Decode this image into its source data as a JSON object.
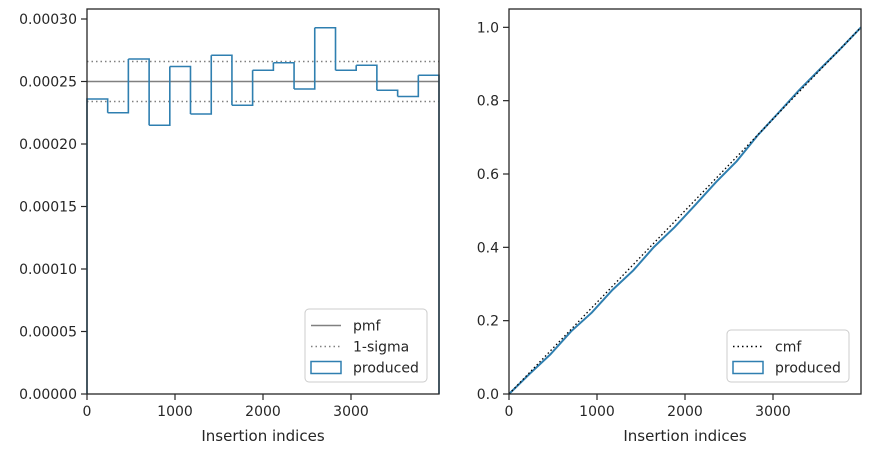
{
  "colors": {
    "produced": "#2f7fb0",
    "pmf": "#808080",
    "sigma": "#808080",
    "cmf": "#000000",
    "spine": "#262626"
  },
  "chart_data": [
    {
      "type": "histogram",
      "xlabel": "Insertion indices",
      "ylabel": "",
      "xlim": [
        0,
        4000
      ],
      "ylim": [
        0,
        0.000308
      ],
      "xticks": [
        0,
        1000,
        2000,
        3000
      ],
      "xtick_labels": [
        "0",
        "1000",
        "2000",
        "3000"
      ],
      "yticks": [
        0,
        5e-05,
        0.0001,
        0.00015,
        0.0002,
        0.00025,
        0.0003
      ],
      "ytick_labels": [
        "0.00000",
        "0.00005",
        "0.00010",
        "0.00015",
        "0.00020",
        "0.00025",
        "0.00030"
      ],
      "pmf": 0.00025,
      "sigma_band": [
        0.000234,
        0.000266
      ],
      "bin_edges": [
        0,
        235,
        470,
        706,
        941,
        1176,
        1412,
        1647,
        1882,
        2118,
        2353,
        2588,
        2824,
        3059,
        3294,
        3530,
        3765,
        4000
      ],
      "produced": [
        0.000236,
        0.000225,
        0.000268,
        0.000215,
        0.000262,
        0.000224,
        0.000271,
        0.000231,
        0.000259,
        0.000265,
        0.000244,
        0.000293,
        0.000259,
        0.000263,
        0.000243,
        0.000238,
        0.000255
      ],
      "legend": {
        "placement": "lower-right",
        "entries": [
          {
            "key": "pmf",
            "label": "pmf"
          },
          {
            "key": "sigma",
            "label": "1-sigma"
          },
          {
            "key": "produced",
            "label": "produced"
          }
        ]
      }
    },
    {
      "type": "line",
      "xlabel": "Insertion indices",
      "ylabel": "",
      "xlim": [
        0,
        4000
      ],
      "ylim": [
        0,
        1.05
      ],
      "xticks": [
        0,
        1000,
        2000,
        3000
      ],
      "xtick_labels": [
        "0",
        "1000",
        "2000",
        "3000"
      ],
      "yticks": [
        0,
        0.2,
        0.4,
        0.6,
        0.8,
        1.0
      ],
      "ytick_labels": [
        "0.0",
        "0.2",
        "0.4",
        "0.6",
        "0.8",
        "1.0"
      ],
      "cmf": {
        "x": [
          0,
          4000
        ],
        "y": [
          0,
          1.0
        ]
      },
      "produced": {
        "x": [
          0,
          235,
          470,
          706,
          941,
          1176,
          1412,
          1647,
          1882,
          2118,
          2353,
          2588,
          2824,
          3059,
          3294,
          3530,
          3765,
          4000
        ],
        "y": [
          0,
          0.055,
          0.108,
          0.171,
          0.222,
          0.284,
          0.337,
          0.401,
          0.455,
          0.516,
          0.578,
          0.635,
          0.705,
          0.766,
          0.828,
          0.885,
          0.941,
          1.0
        ]
      },
      "legend": {
        "placement": "lower-right",
        "entries": [
          {
            "key": "cmf",
            "label": "cmf"
          },
          {
            "key": "produced",
            "label": "produced"
          }
        ]
      }
    }
  ]
}
